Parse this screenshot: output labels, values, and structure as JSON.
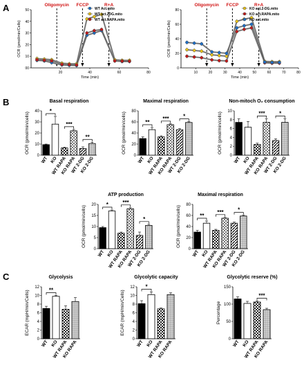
{
  "panels": {
    "a": "A",
    "b": "B",
    "c": "C"
  },
  "chart_data": [
    {
      "id": "A-left",
      "type": "line",
      "xlabel": "Time (min)",
      "ylabel": "OCR (pmol/min/Cells)",
      "xlim": [
        0,
        80
      ],
      "ylim": [
        0,
        50
      ],
      "xticks": [
        20,
        40,
        60,
        80
      ],
      "yticks": [
        0,
        10,
        20,
        30,
        40,
        50
      ],
      "yticklabels": [
        "00",
        "10",
        "20",
        "30",
        "40",
        "50"
      ],
      "x": [
        4,
        9,
        14,
        21,
        26,
        31,
        38,
        43,
        48,
        57,
        62,
        67
      ],
      "series": [
        {
          "name": "WT Act.mito",
          "color": "#1f6fc5",
          "values": [
            6.5,
            6,
            4.5,
            2.5,
            2.2,
            2,
            28,
            30,
            32,
            6,
            5.5,
            5.5
          ]
        },
        {
          "name": "WT act.2DG.mito",
          "color": "#e8c21b",
          "values": [
            8,
            7.5,
            7,
            4,
            3.5,
            3.5,
            42,
            44,
            46,
            7,
            6.5,
            6.5
          ]
        },
        {
          "name": "WT act.RAPA.mito",
          "color": "#c01b1b",
          "values": [
            7,
            6.5,
            6,
            3,
            2.8,
            2.5,
            30,
            32,
            33,
            6,
            5.8,
            5.7
          ]
        }
      ],
      "annotations": [
        "Oligomycin",
        "FCCP",
        "R+A"
      ]
    },
    {
      "id": "A-right",
      "type": "line",
      "xlabel": "Time (min)",
      "ylabel": "OCR (pmol/min/Cells)",
      "xlim": [
        0,
        80
      ],
      "ylim": [
        0,
        80
      ],
      "xticks": [
        10,
        20,
        30,
        40,
        50,
        60,
        70,
        80
      ],
      "yticks": [
        0,
        20,
        40,
        60,
        80
      ],
      "x": [
        4,
        9,
        14,
        21,
        26,
        31,
        38,
        43,
        48,
        57,
        62,
        67
      ],
      "series": [
        {
          "name": "KO act.2-DG.mito",
          "color": "#e8c21b",
          "values": [
            25,
            24,
            23,
            18,
            17,
            16,
            64,
            67,
            69,
            9,
            8.5,
            8.5
          ]
        },
        {
          "name": "KO act.RAPA.mito",
          "color": "#c01b1b",
          "values": [
            16,
            15,
            14,
            11,
            10,
            9.5,
            50,
            53,
            55,
            7,
            6.5,
            6.5
          ]
        },
        {
          "name": "KO act.mito",
          "color": "#1f6fc5",
          "values": [
            35,
            34,
            33,
            22,
            21,
            20,
            55,
            58,
            60,
            8,
            7.5,
            7.5
          ]
        }
      ],
      "annotations": [
        "Oligomycin",
        "FCCP",
        "R+A"
      ]
    },
    {
      "id": "B1",
      "type": "bar",
      "title": "Basal respiration",
      "ylabel": "OCR (pmol/min/cells)",
      "ylim": [
        0,
        40
      ],
      "yticks": [
        0,
        10,
        20,
        30,
        40
      ],
      "categories": [
        "WT",
        "KO",
        "WT RAPA",
        "KO RAPA",
        "WT 2-DG",
        "KO 2-DG"
      ],
      "values": [
        9.5,
        28,
        6.5,
        22,
        6,
        10.5
      ],
      "errors": [
        0.5,
        7,
        0.7,
        1.2,
        1.5,
        1.2
      ],
      "significance": [
        {
          "pair": [
            0,
            1
          ],
          "label": "*"
        },
        {
          "pair": [
            2,
            3
          ],
          "label": "***"
        },
        {
          "pair": [
            4,
            5
          ],
          "label": "**"
        }
      ]
    },
    {
      "id": "B2",
      "type": "bar",
      "title": "Maximal respiration",
      "ylabel": "OCR (pmol/min/cells)",
      "ylim": [
        0,
        80
      ],
      "yticks": [
        0,
        20,
        40,
        60,
        80
      ],
      "categories": [
        "WT",
        "KO",
        "WT RAPA",
        "KO RAPA",
        "WT 2-DG",
        "KO 2-DG"
      ],
      "values": [
        30,
        46,
        33,
        55,
        46,
        59
      ],
      "errors": [
        3,
        4,
        2,
        1.5,
        2,
        1.5
      ],
      "significance": [
        {
          "pair": [
            0,
            1
          ],
          "label": "**"
        },
        {
          "pair": [
            2,
            3
          ],
          "label": "***"
        },
        {
          "pair": [
            4,
            5
          ],
          "label": "*"
        }
      ]
    },
    {
      "id": "B3",
      "type": "bar",
      "title": "Non-mitoch O₂ consumption",
      "ylabel": "OCR (pmol/min/cells)",
      "ylim": [
        0,
        10
      ],
      "yticks": [
        0,
        2,
        4,
        6,
        8,
        10
      ],
      "categories": [
        "WT",
        "KO",
        "WT RAPA",
        "KO RAPA",
        "WT 2-DG",
        "KO 2-DG"
      ],
      "values": [
        7.4,
        6.3,
        2.4,
        7.4,
        3.3,
        7.4
      ],
      "errors": [
        0.8,
        1.3,
        0.3,
        0.8,
        0.4,
        0.8
      ],
      "significance": [
        {
          "pair": [
            2,
            3
          ],
          "label": "***"
        },
        {
          "pair": [
            4,
            5
          ],
          "label": "*"
        }
      ]
    },
    {
      "id": "B4",
      "type": "bar",
      "title": "ATP production",
      "ylabel": "OCR (pmol/min/cells)",
      "ylim": [
        0,
        20
      ],
      "yticks": [
        0,
        5,
        10,
        15,
        20
      ],
      "categories": [
        "WT",
        "KO",
        "WT RAPA",
        "KO RAPA",
        "WT 2-DG",
        "KO 2-DG"
      ],
      "values": [
        9.5,
        17,
        7,
        18,
        6,
        10.5
      ],
      "errors": [
        0.5,
        0.5,
        0.5,
        0.5,
        1.5,
        0.5
      ],
      "significance": [
        {
          "pair": [
            0,
            1
          ],
          "label": "*"
        },
        {
          "pair": [
            2,
            3
          ],
          "label": "***"
        },
        {
          "pair": [
            4,
            5
          ],
          "label": "*"
        }
      ]
    },
    {
      "id": "B5",
      "type": "bar",
      "title": "Maximal respiration",
      "ylabel": "OCR (pmol/min/cells)",
      "ylim": [
        0,
        80
      ],
      "yticks": [
        0,
        20,
        40,
        60,
        80
      ],
      "categories": [
        "WT",
        "KO",
        "WT RAPA",
        "KO RAPA",
        "WT 2-DG",
        "KO 2-DG"
      ],
      "values": [
        30,
        46,
        33,
        55,
        46,
        59
      ],
      "errors": [
        3,
        4,
        2,
        1.5,
        2,
        1.5
      ],
      "significance": [
        {
          "pair": [
            0,
            1
          ],
          "label": "**"
        },
        {
          "pair": [
            2,
            3
          ],
          "label": "***"
        },
        {
          "pair": [
            4,
            5
          ],
          "label": "*"
        }
      ]
    },
    {
      "id": "C1",
      "type": "bar",
      "title": "Glycolysis",
      "ylabel": "ECAR (mpH/min/Cells)",
      "ylim": [
        0,
        12
      ],
      "yticks": [
        0,
        2,
        4,
        6,
        8,
        10,
        12
      ],
      "categories": [
        "WT",
        "KO",
        "WT RAPA",
        "KO RAPA"
      ],
      "values": [
        7,
        9.8,
        6.8,
        8.6
      ],
      "errors": [
        0.5,
        0.2,
        0.8,
        0.9
      ],
      "significance": [
        {
          "pair": [
            0,
            1
          ],
          "label": "**"
        }
      ]
    },
    {
      "id": "C2",
      "type": "bar",
      "title": "Glycolytic capacity",
      "ylabel": "ECAR (mpH/min/Cells)",
      "ylim": [
        0,
        12
      ],
      "yticks": [
        0,
        2,
        4,
        6,
        8,
        10,
        12
      ],
      "categories": [
        "WT",
        "KO",
        "WT RAPA",
        "KO RAPA"
      ],
      "values": [
        8.1,
        10.2,
        6.9,
        10.2
      ],
      "errors": [
        0.7,
        0.6,
        0.2,
        0.4
      ],
      "significance": [
        {
          "pair": [
            0,
            1
          ],
          "label": "*"
        }
      ]
    },
    {
      "id": "C3",
      "type": "bar",
      "title": "Glycolytic reserve (%)",
      "ylabel": "Percentage",
      "ylim": [
        0,
        150
      ],
      "yticks": [
        0,
        50,
        100,
        150
      ],
      "categories": [
        "WT",
        "KO",
        "WT RAPA",
        "KO RAPA"
      ],
      "values": [
        115,
        102,
        106,
        84
      ],
      "errors": [
        6,
        6,
        3,
        4
      ],
      "significance": [
        {
          "pair": [
            2,
            3
          ],
          "label": "***"
        }
      ]
    }
  ]
}
